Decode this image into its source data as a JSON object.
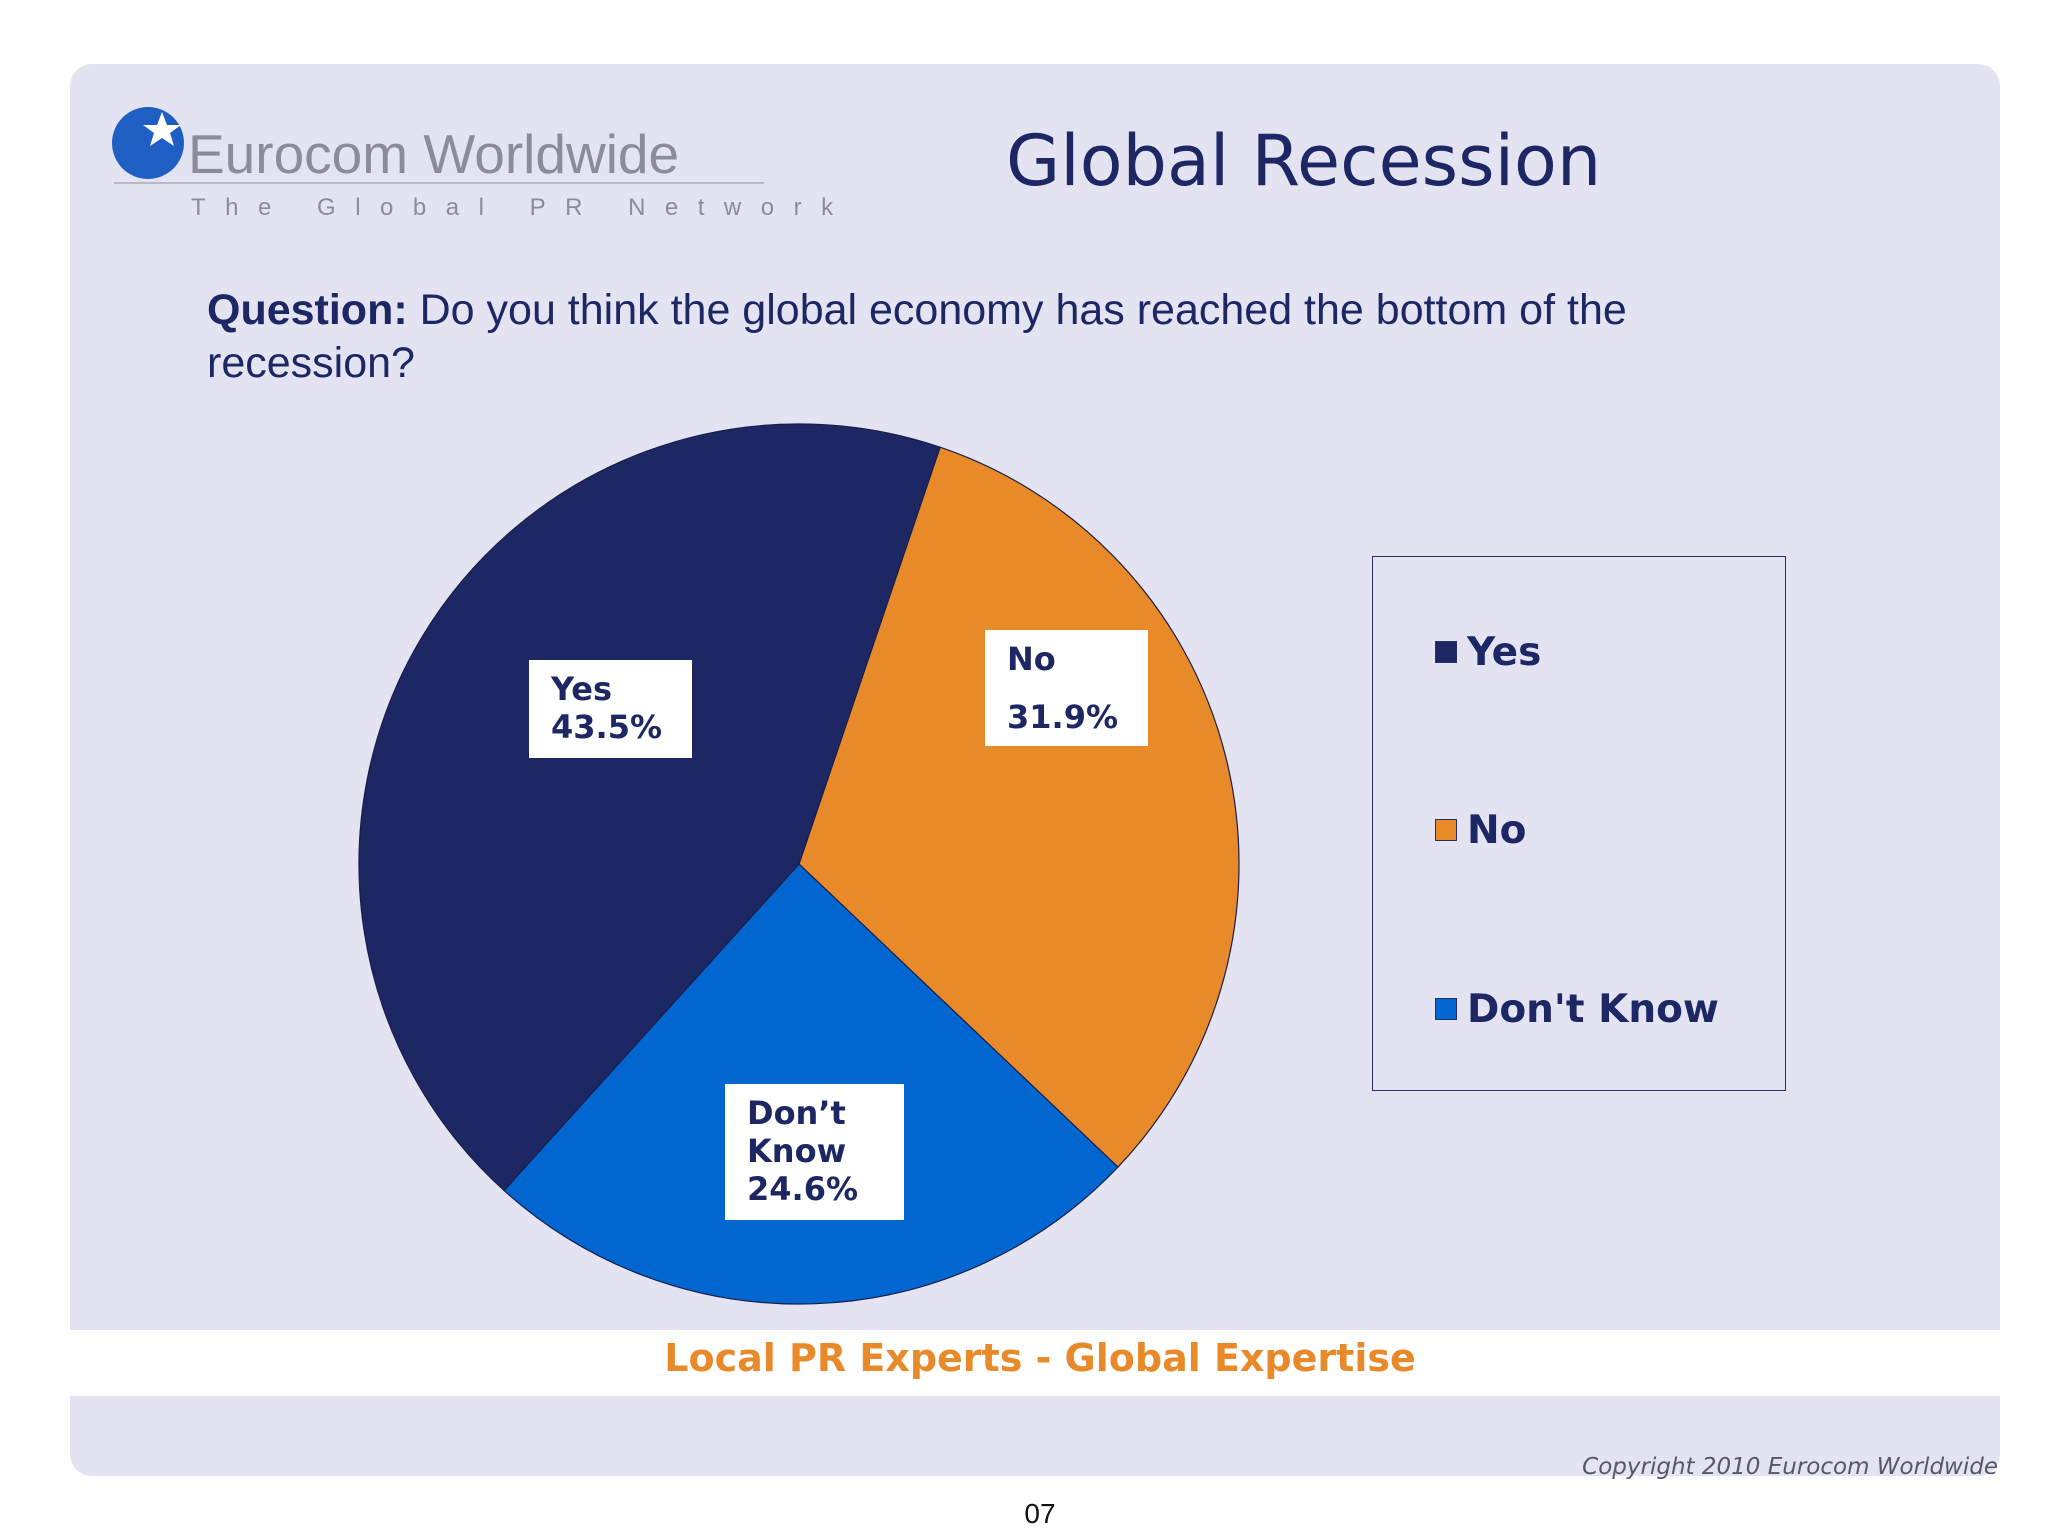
{
  "slide": {
    "title": "Global Recession",
    "question_label": "Question:",
    "question_text": " Do you think the global economy has reached the bottom of the recession?",
    "tagline": "Local PR Experts - Global Expertise",
    "copyright": "Copyright 2010 Eurocom Worldwide",
    "page_number": "07"
  },
  "logo": {
    "name": "Eurocom Worldwide",
    "tagline": "The Global PR Network",
    "icon": "star-globe-icon"
  },
  "colors": {
    "yes": "#1c2763",
    "no": "#e8892a",
    "dont_know": "#0266d0",
    "text": "#1c2763",
    "accent": "#e8892a"
  },
  "chart_data": {
    "type": "pie",
    "slices": [
      {
        "name": "Yes",
        "label_lines": [
          "Yes",
          "43.5%"
        ],
        "value": 43.5
      },
      {
        "name": "No",
        "label_lines": [
          "No",
          "31.9%"
        ],
        "value": 31.9
      },
      {
        "name": "Don't Know",
        "label_lines": [
          "Don’t",
          "Know",
          "24.6%"
        ],
        "value": 24.6
      }
    ],
    "legend": [
      "Yes",
      "No",
      "Don't Know"
    ],
    "legend_position": "right"
  }
}
